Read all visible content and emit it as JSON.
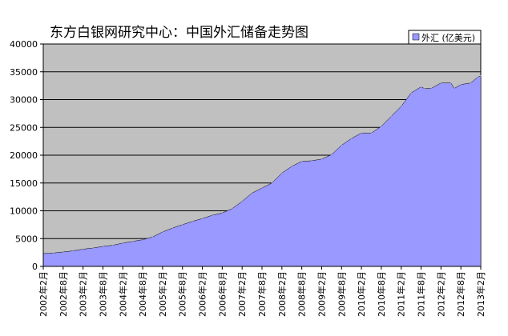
{
  "chart_data": {
    "type": "area",
    "title": "东方白银网研究中心：中国外汇储备走势图",
    "xlabel": "",
    "ylabel": "",
    "ylim": [
      0,
      40000
    ],
    "yticks": [
      0,
      5000,
      10000,
      15000,
      20000,
      25000,
      30000,
      35000,
      40000
    ],
    "grid": true,
    "legend": "top-right",
    "colors": {
      "plot_background": "#c0c0c0",
      "area_fill": "#9999ff",
      "gridline": "#000000",
      "axis": "#000000"
    },
    "x_tick_labels": [
      "2002年2月",
      "2002年8月",
      "2003年2月",
      "2003年8月",
      "2004年2月",
      "2004年8月",
      "2005年2月",
      "2005年8月",
      "2006年2月",
      "2006年8月",
      "2007年2月",
      "2007年8月",
      "2008年2月",
      "2008年8月",
      "2009年2月",
      "2009年8月",
      "2010年2月",
      "2010年8月",
      "2011年2月",
      "2011年8月",
      "2012年2月",
      "2012年8月",
      "2013年2月"
    ],
    "series": [
      {
        "name": "外汇 (亿美元)",
        "x": [
          "2002-02",
          "2002-05",
          "2002-08",
          "2002-11",
          "2003-02",
          "2003-05",
          "2003-08",
          "2003-11",
          "2004-02",
          "2004-05",
          "2004-08",
          "2004-11",
          "2005-02",
          "2005-05",
          "2005-08",
          "2005-11",
          "2006-02",
          "2006-05",
          "2006-08",
          "2006-11",
          "2007-02",
          "2007-05",
          "2007-08",
          "2007-11",
          "2008-02",
          "2008-05",
          "2008-08",
          "2008-11",
          "2009-02",
          "2009-05",
          "2009-08",
          "2009-11",
          "2010-02",
          "2010-05",
          "2010-08",
          "2010-11",
          "2011-02",
          "2011-05",
          "2011-08",
          "2011-09",
          "2011-11",
          "2012-02",
          "2012-05",
          "2012-06",
          "2012-08",
          "2012-11",
          "2013-01",
          "2013-02"
        ],
        "values": [
          2300,
          2400,
          2600,
          2800,
          3100,
          3300,
          3600,
          3800,
          4200,
          4500,
          4800,
          5300,
          6200,
          6900,
          7500,
          8100,
          8600,
          9200,
          9600,
          10400,
          11700,
          13200,
          14100,
          15000,
          16800,
          18000,
          18900,
          19000,
          19300,
          20100,
          21800,
          23000,
          24000,
          24000,
          25200,
          27000,
          28800,
          31200,
          32300,
          32000,
          32000,
          33000,
          33000,
          32000,
          32700,
          33000,
          34000,
          34300
        ]
      }
    ]
  }
}
